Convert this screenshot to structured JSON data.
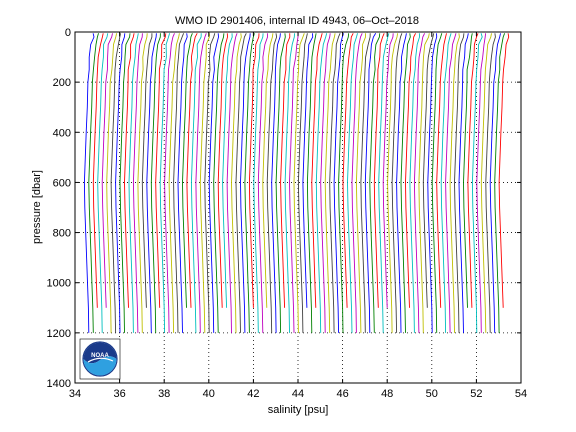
{
  "chart_data": {
    "type": "line",
    "title": "WMO ID 2901406, internal ID 4943, 06–Oct–2018",
    "xlabel": "salinity [psu]",
    "ylabel": "pressure [dbar]",
    "xlim": [
      34,
      54
    ],
    "ylim": [
      1400,
      0
    ],
    "y_reversed": true,
    "x_ticks": [
      34,
      36,
      38,
      40,
      42,
      44,
      46,
      48,
      50,
      52,
      54
    ],
    "y_ticks": [
      0,
      200,
      400,
      600,
      800,
      1000,
      1200,
      1400
    ],
    "x_tick_labels": [
      "34",
      "36",
      "38",
      "40",
      "42",
      "44",
      "46",
      "48",
      "50",
      "52",
      "54"
    ],
    "y_tick_labels": [
      "0",
      "200",
      "400",
      "600",
      "800",
      "1000",
      "1200",
      "1400"
    ],
    "grid": "dotted",
    "series_note": "Waterfall of successive salinity profiles; each profile offset by 0.2 psu from the previous one.",
    "series_offset_psu": 0.2,
    "series_count": 94,
    "series_first_offset": 0,
    "base_profile": {
      "pressure": [
        5,
        20,
        50,
        100,
        150,
        200,
        300,
        400,
        500,
        600,
        700,
        800,
        900,
        1000,
        1100,
        1200
      ],
      "salinity": [
        34.85,
        34.82,
        34.72,
        34.66,
        34.62,
        34.58,
        34.55,
        34.5,
        34.46,
        34.42,
        34.44,
        34.48,
        34.52,
        34.56,
        34.6,
        34.62
      ]
    },
    "line_colors": [
      "#0000ff",
      "#008000",
      "#ff0000",
      "#00bfbf",
      "#bf00bf",
      "#bfbf00",
      "#404040"
    ],
    "logo": "noaa-logo"
  }
}
